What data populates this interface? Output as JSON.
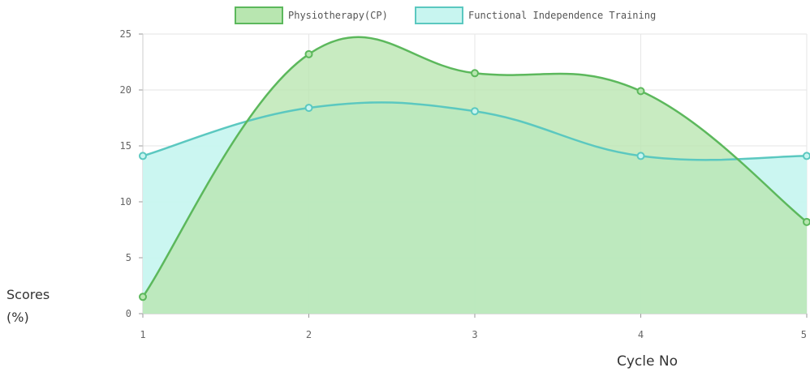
{
  "chart_data": {
    "type": "area",
    "title": "",
    "xlabel": "Cycle No",
    "ylabel": "Scores (%)",
    "ylabel_lines": [
      "Scores",
      "(%)"
    ],
    "x": [
      "1",
      "2",
      "3",
      "4",
      "5"
    ],
    "ylim": [
      0,
      25
    ],
    "yticks": [
      "0",
      "5",
      "10",
      "15",
      "20",
      "25"
    ],
    "grid": true,
    "legend_position": "top-center",
    "series": [
      {
        "name": "Physiotherapy(CP)",
        "values": [
          1.5,
          23.2,
          21.5,
          19.9,
          8.2
        ],
        "stroke": "#5cb85c",
        "fill": "#b8e6b0"
      },
      {
        "name": "Functional Independence Training",
        "values": [
          14.1,
          18.4,
          18.1,
          14.1,
          14.1
        ],
        "stroke": "#5bc8c0",
        "fill": "#c8f5f0"
      }
    ]
  }
}
